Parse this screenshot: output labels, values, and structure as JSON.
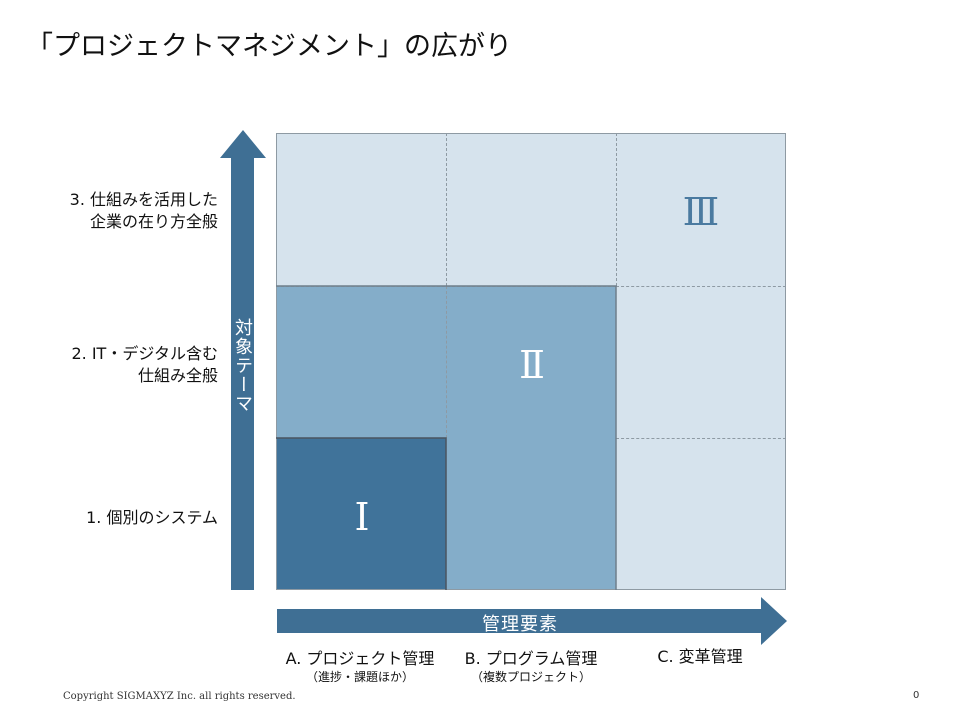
{
  "title": "「プロジェクトマネジメント」の広がり",
  "y_axis": {
    "label": "対象テーマ",
    "levels": [
      {
        "line1": "3. 仕組みを活用した",
        "line2": "企業の在り方全般"
      },
      {
        "line1": "2. IT・デジタル含む",
        "line2": "仕組み全般"
      },
      {
        "line1": "1. 個別のシステム",
        "line2": ""
      }
    ]
  },
  "x_axis": {
    "label": "管理要素",
    "categories": [
      {
        "label": "A. プロジェクト管理",
        "sub": "（進捗・課題ほか）"
      },
      {
        "label": "B. プログラム管理",
        "sub": "（複数プロジェクト）"
      },
      {
        "label": "C. 変革管理",
        "sub": ""
      }
    ]
  },
  "levels": {
    "i": "Ⅰ",
    "ii": "Ⅱ",
    "iii": "Ⅲ"
  },
  "colors": {
    "arrow": "#3f6f94",
    "level1": "#40739a",
    "level2": "#84adc9",
    "level3": "#d6e3ed"
  },
  "footer": {
    "copyright": "Copyright SIGMAXYZ Inc. all rights reserved.",
    "page": "0"
  }
}
